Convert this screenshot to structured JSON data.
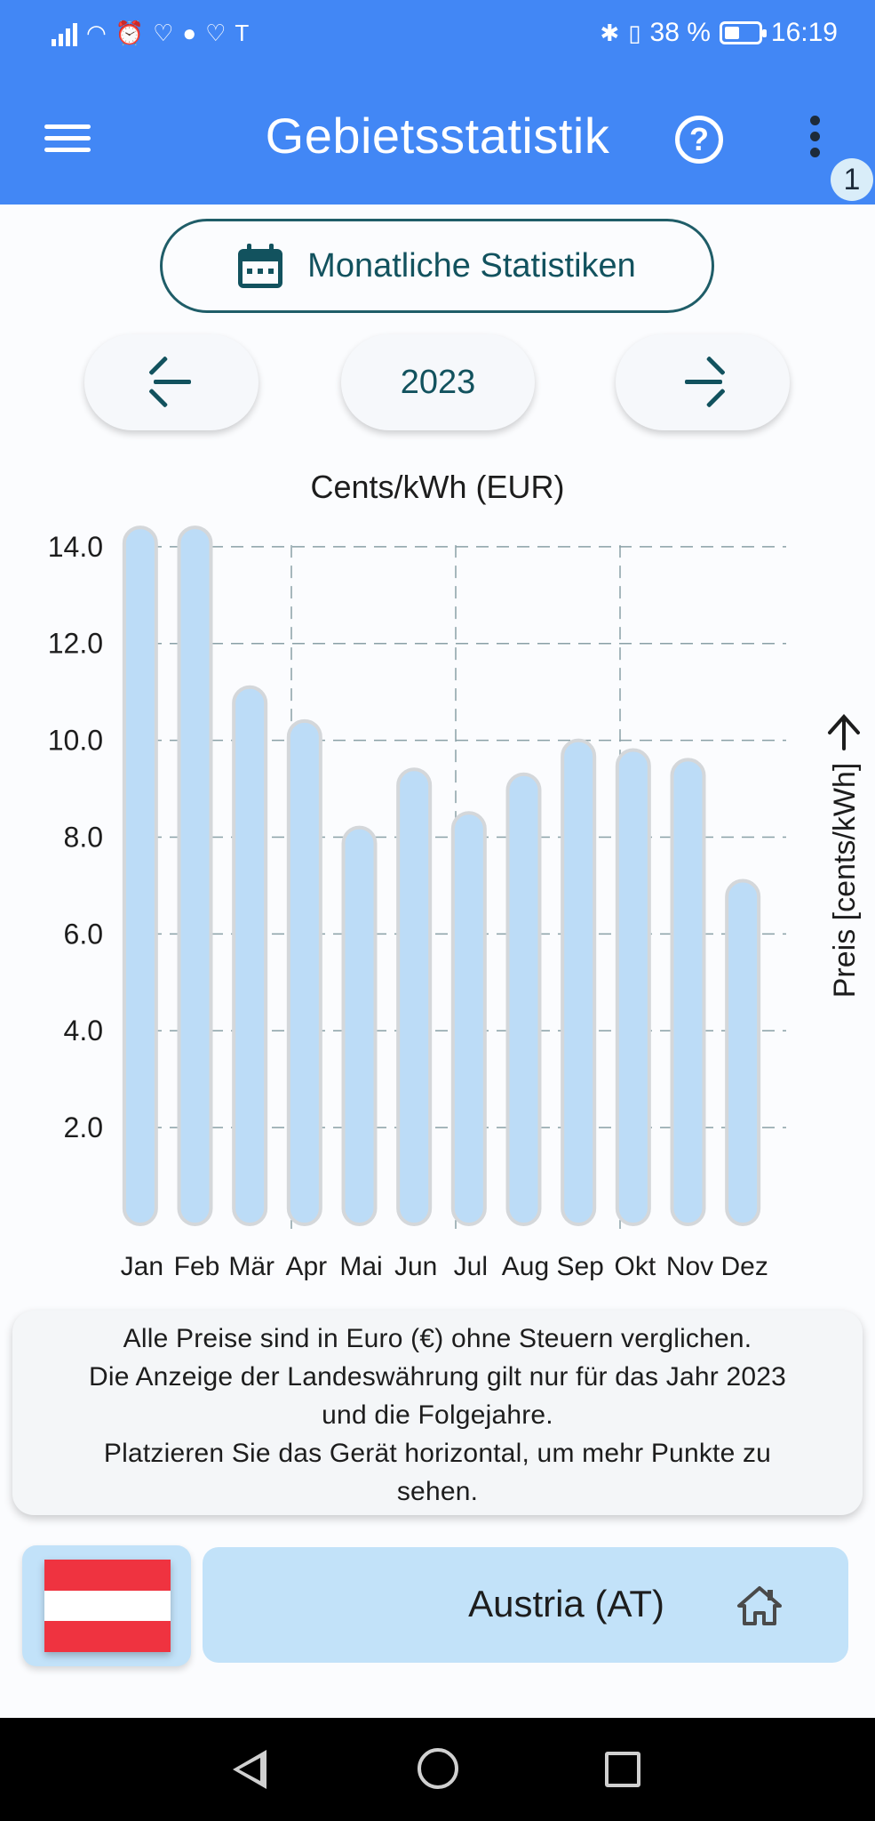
{
  "status_bar": {
    "carrier_icon": "T",
    "battery_percent": "38 %",
    "battery_level": 0.38,
    "time": "16:19"
  },
  "app_bar": {
    "title": "Gebietsstatistik",
    "notification_count": "1"
  },
  "controls": {
    "monthly_button_label": "Monatliche Statistiken",
    "year": "2023"
  },
  "chart_data": {
    "type": "bar",
    "title": "Cents/kWh (EUR)",
    "ylabel": "Preis [cents/kWh]",
    "categories": [
      "Jan",
      "Feb",
      "Mär",
      "Apr",
      "Mai",
      "Jun",
      "Jul",
      "Aug",
      "Sep",
      "Okt",
      "Nov",
      "Dez"
    ],
    "values": [
      14.4,
      14.4,
      11.1,
      10.4,
      8.2,
      9.4,
      8.5,
      9.3,
      10.0,
      9.8,
      9.6,
      7.1
    ],
    "yticks": [
      "2.0",
      "4.0",
      "6.0",
      "8.0",
      "10.0",
      "12.0",
      "14.0"
    ],
    "ylim": [
      0,
      14.4
    ],
    "grid": true,
    "bar_color": "#bcdcf7"
  },
  "note": {
    "lines": [
      "Alle Preise sind in Euro (€) ohne Steuern verglichen.",
      "Die Anzeige der Landeswährung gilt nur für das Jahr 2023",
      "und die Folgejahre.",
      "Platzieren Sie das Gerät horizontal, um mehr Punkte zu",
      "sehen."
    ]
  },
  "country": {
    "name": "Austria (AT)"
  },
  "colors": {
    "app_bar": "#4287f5",
    "accent": "#12525e",
    "country_bg": "#c2e2f9"
  }
}
